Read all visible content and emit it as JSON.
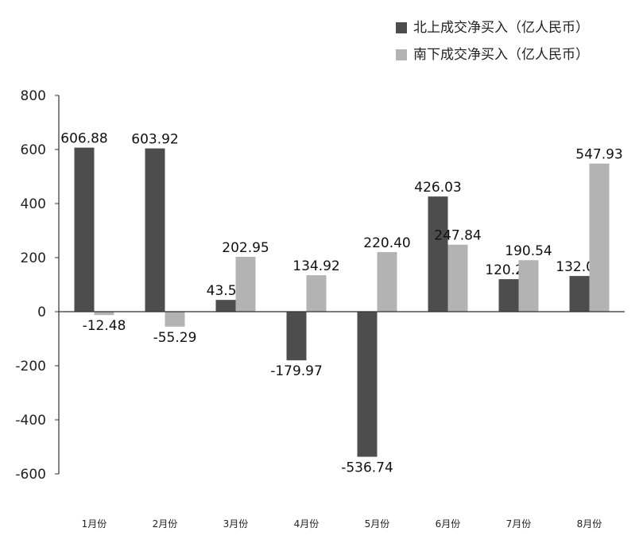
{
  "chart_data": {
    "type": "bar",
    "categories": [
      "1月份",
      "2月份",
      "3月份",
      "4月份",
      "5月份",
      "6月份",
      "7月份",
      "8月份"
    ],
    "series": [
      {
        "name": "北上成交净买入（亿人民币）",
        "color": "#4d4d4d",
        "values": [
          606.88,
          603.92,
          43.56,
          -179.97,
          -536.74,
          426.03,
          120.25,
          132.06
        ],
        "labels": [
          "606.88",
          "603.92",
          "43.56",
          "-179.97",
          "-536.74",
          "426.03",
          "120.25",
          "132.06"
        ]
      },
      {
        "name": "南下成交净买入（亿人民币）",
        "color": "#b3b3b3",
        "values": [
          -12.48,
          -55.29,
          202.95,
          134.92,
          220.4,
          247.84,
          190.54,
          547.93
        ],
        "labels": [
          "-12.48",
          "-55.29",
          "202.95",
          "134.92",
          "220.40",
          "247.84",
          "190.54",
          "547.93"
        ]
      }
    ],
    "yticks": [
      800,
      600,
      400,
      200,
      0,
      -200,
      -400,
      -600
    ],
    "ylim": [
      -600,
      800
    ],
    "xlabel": "",
    "ylabel": "",
    "title": "",
    "grid": false,
    "legend_position": "top-right"
  }
}
